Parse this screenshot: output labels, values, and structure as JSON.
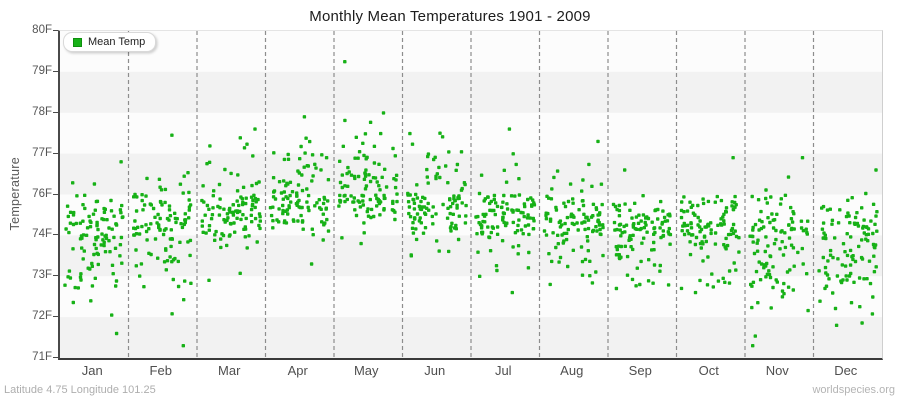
{
  "title": "Monthly Mean Temperatures 1901 - 2009",
  "legend": {
    "label": "Mean Temp"
  },
  "y_axis": {
    "title": "Temperature",
    "tick_labels": [
      "80F",
      "79F",
      "78F",
      "77F",
      "76F",
      "74F",
      "73F",
      "72F",
      "71F"
    ],
    "tick_values": [
      80,
      79,
      78,
      77,
      76,
      74,
      73,
      72,
      71
    ]
  },
  "x_axis": {
    "months": [
      "Jan",
      "Feb",
      "Mar",
      "Apr",
      "May",
      "Jun",
      "Jul",
      "Aug",
      "Sep",
      "Oct",
      "Nov",
      "Dec"
    ]
  },
  "footer": {
    "left": "Latitude 4.75 Longitude 101.25",
    "right": "worldspecies.org"
  },
  "colors": {
    "point": "#17b117",
    "legend_swatch": "#17b117",
    "legend_swatch_border": "#0e8f0e",
    "band": "#f2f2f2",
    "plot_bg": "#fcfcfc",
    "grid": "#8d8d8d"
  },
  "chart_data": {
    "type": "scatter",
    "title": "Monthly Mean Temperatures 1901 - 2009",
    "series_name": "Mean Temp",
    "unit": "F",
    "xlabel": "",
    "ylabel": "Temperature",
    "ylim": [
      71,
      80
    ],
    "y_tick_labels_shown": [
      "80F",
      "79F",
      "78F",
      "77F",
      "76F",
      "74F",
      "73F",
      "72F",
      "71F"
    ],
    "categories": [
      "Jan",
      "Feb",
      "Mar",
      "Apr",
      "May",
      "Jun",
      "Jul",
      "Aug",
      "Sep",
      "Oct",
      "Nov",
      "Dec"
    ],
    "years_span": "1901-2009",
    "points_per_month": 109,
    "grid": "vertical-dashed-between-months",
    "background_bands": "alternating horizontal 1F stripes",
    "legend_position": "top-left-inside",
    "monthly_stats": [
      {
        "month": "Jan",
        "mean": 74.2,
        "sd": 1.0,
        "min": 71.6,
        "max": 76.8
      },
      {
        "month": "Feb",
        "mean": 74.5,
        "sd": 1.1,
        "min": 71.3,
        "max": 77.45
      },
      {
        "month": "Mar",
        "mean": 75.2,
        "sd": 1.0,
        "min": 72.9,
        "max": 77.6
      },
      {
        "month": "Apr",
        "mean": 75.7,
        "sd": 0.95,
        "min": 73.3,
        "max": 77.9
      },
      {
        "month": "May",
        "mean": 76.1,
        "sd": 0.95,
        "min": 73.8,
        "max": 79.25
      },
      {
        "month": "Jun",
        "mean": 75.5,
        "sd": 0.9,
        "min": 73.5,
        "max": 77.5
      },
      {
        "month": "Jul",
        "mean": 74.9,
        "sd": 0.95,
        "min": 72.6,
        "max": 77.6
      },
      {
        "month": "Aug",
        "mean": 74.6,
        "sd": 0.95,
        "min": 72.8,
        "max": 77.3
      },
      {
        "month": "Sep",
        "mean": 74.2,
        "sd": 0.8,
        "min": 72.7,
        "max": 76.6
      },
      {
        "month": "Oct",
        "mean": 74.4,
        "sd": 0.85,
        "min": 72.6,
        "max": 76.9
      },
      {
        "month": "Nov",
        "mean": 74.0,
        "sd": 1.05,
        "min": 71.3,
        "max": 76.9
      },
      {
        "month": "Dec",
        "mean": 73.9,
        "sd": 1.0,
        "min": 71.8,
        "max": 76.6
      }
    ],
    "notable_points": [
      {
        "month": "May",
        "value": 79.25,
        "note": "highest value on chart"
      },
      {
        "month": "Nov",
        "value": 71.3,
        "note": "lowest value on chart"
      },
      {
        "month": "Jan",
        "value": 71.6,
        "note": "low outlier"
      }
    ],
    "seed": 42
  }
}
